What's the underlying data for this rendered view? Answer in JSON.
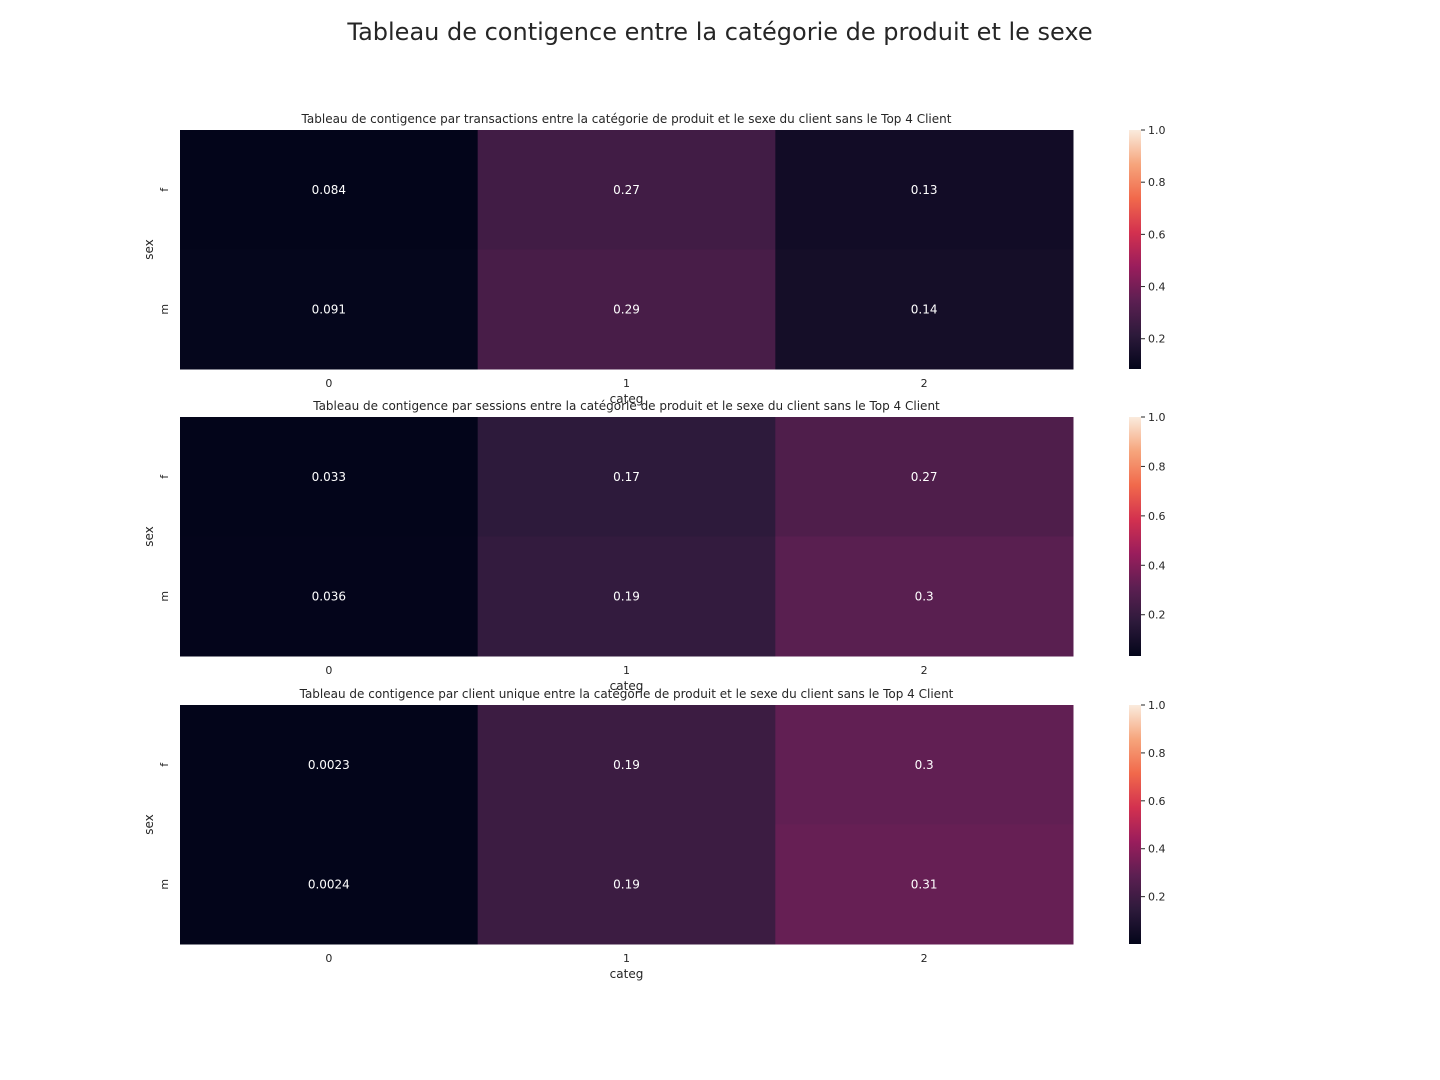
{
  "figure": {
    "suptitle": "Tableau de contigence entre la catégorie de produit et le sexe"
  },
  "colormap": {
    "name": "rocket",
    "stops": [
      "#03051a",
      "#2d1a3b",
      "#5c1f52",
      "#9a1d5c",
      "#d3314f",
      "#f1694b",
      "#f6a57c",
      "#faebdd"
    ]
  },
  "chart_data": [
    {
      "type": "heatmap",
      "title": "Tableau de contigence par transactions entre la catégorie de produit et le sexe du client sans le Top 4 Client",
      "xlabel": "categ",
      "ylabel": "sex",
      "x_categories": [
        "0",
        "1",
        "2"
      ],
      "y_categories": [
        "f",
        "m"
      ],
      "values": [
        [
          0.084,
          0.27,
          0.13
        ],
        [
          0.091,
          0.29,
          0.14
        ]
      ],
      "labels": [
        [
          "0.084",
          "0.27",
          "0.13"
        ],
        [
          "0.091",
          "0.29",
          "0.14"
        ]
      ],
      "vmin": 0.084,
      "vmax": 1.0,
      "colorbar_ticks": [
        "0.2",
        "0.4",
        "0.6",
        "0.8",
        "1.0"
      ]
    },
    {
      "type": "heatmap",
      "title": "Tableau de contigence par sessions entre la catégorie de produit et le sexe du client sans le Top 4 Client",
      "xlabel": "categ",
      "ylabel": "sex",
      "x_categories": [
        "0",
        "1",
        "2"
      ],
      "y_categories": [
        "f",
        "m"
      ],
      "values": [
        [
          0.033,
          0.17,
          0.27
        ],
        [
          0.036,
          0.19,
          0.3
        ]
      ],
      "labels": [
        [
          "0.033",
          "0.17",
          "0.27"
        ],
        [
          "0.036",
          "0.19",
          "0.3"
        ]
      ],
      "vmin": 0.033,
      "vmax": 1.0,
      "colorbar_ticks": [
        "0.2",
        "0.4",
        "0.6",
        "0.8",
        "1.0"
      ]
    },
    {
      "type": "heatmap",
      "title": "Tableau de contigence par client unique entre la catégorie de produit et le sexe du client sans le Top 4 Client",
      "xlabel": "categ",
      "ylabel": "sex",
      "x_categories": [
        "0",
        "1",
        "2"
      ],
      "y_categories": [
        "f",
        "m"
      ],
      "values": [
        [
          0.0023,
          0.19,
          0.3
        ],
        [
          0.0024,
          0.19,
          0.31
        ]
      ],
      "labels": [
        [
          "0.0023",
          "0.19",
          "0.3"
        ],
        [
          "0.0024",
          "0.19",
          "0.31"
        ]
      ],
      "vmin": 0.0023,
      "vmax": 1.0,
      "colorbar_ticks": [
        "0.2",
        "0.4",
        "0.6",
        "0.8",
        "1.0"
      ]
    }
  ]
}
